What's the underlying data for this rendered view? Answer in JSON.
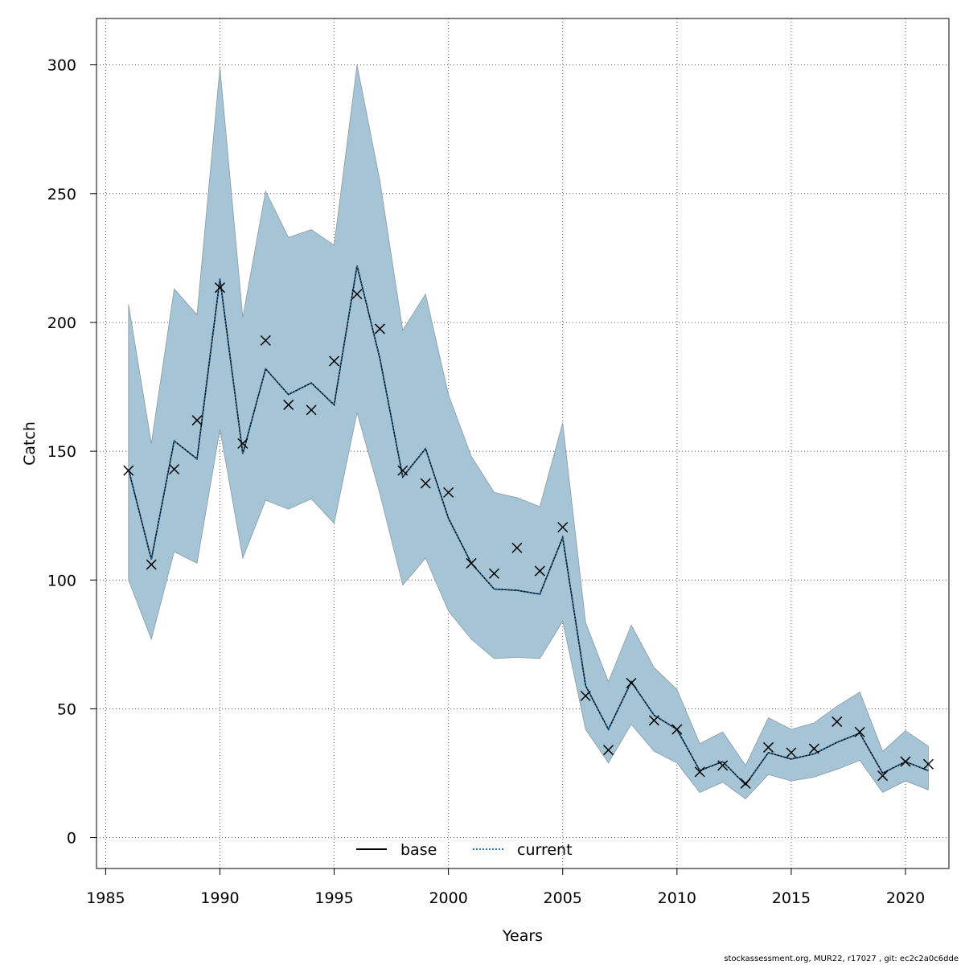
{
  "chart_data": {
    "type": "line",
    "title": "",
    "xlabel": "Years",
    "ylabel": "Catch",
    "xlim": [
      1984.6,
      2021.9
    ],
    "ylim": [
      -12,
      318
    ],
    "x_ticks": [
      1985,
      1990,
      1995,
      2000,
      2005,
      2010,
      2015,
      2020
    ],
    "y_ticks": [
      0,
      50,
      100,
      150,
      200,
      250,
      300
    ],
    "grid": true,
    "legend_position": "bottom-center",
    "colors": {
      "band": "#a5c4d5",
      "band_edge": "#8a9aa4",
      "base": "#000000",
      "current": "#1f6fa8",
      "observed": "#000000",
      "grid": "#555555"
    },
    "years": [
      1986,
      1987,
      1988,
      1989,
      1990,
      1991,
      1992,
      1993,
      1994,
      1995,
      1996,
      1997,
      1998,
      1999,
      2000,
      2001,
      2002,
      2003,
      2004,
      2005,
      2006,
      2007,
      2008,
      2009,
      2010,
      2011,
      2012,
      2013,
      2014,
      2015,
      2016,
      2017,
      2018,
      2019,
      2020,
      2021
    ],
    "observed": [
      142.5,
      106,
      143,
      162,
      213.5,
      153,
      193,
      168,
      166,
      185,
      211,
      197.5,
      142.5,
      137.5,
      134,
      106.5,
      102.5,
      112.5,
      103.5,
      120.5,
      55,
      34,
      60,
      45.5,
      42,
      25.5,
      28,
      21,
      35,
      33,
      34.5,
      45,
      41,
      24,
      29.5,
      28.5
    ],
    "series": [
      {
        "name": "base",
        "style": "solid",
        "values": [
          143,
          108,
          154,
          147,
          217,
          149,
          182,
          172,
          176.5,
          168,
          222,
          186,
          140,
          151,
          124,
          106.5,
          96.5,
          96,
          94.5,
          116.5,
          59,
          42,
          60.5,
          47.5,
          42,
          26,
          29.5,
          20.5,
          33,
          30.5,
          32.5,
          37,
          40.5,
          25,
          29.5,
          26
        ]
      },
      {
        "name": "current",
        "style": "dotted",
        "values": [
          143,
          108,
          154,
          147,
          217,
          149,
          182,
          172,
          176.5,
          168,
          222,
          186,
          140,
          151,
          124,
          106.5,
          96.5,
          96,
          94.5,
          116.5,
          59,
          42,
          60.5,
          47.5,
          42,
          26,
          29.5,
          20.5,
          33,
          30.5,
          32.5,
          37,
          40.5,
          25,
          29.5,
          26
        ]
      }
    ],
    "band": {
      "upper": [
        207,
        153,
        213,
        203,
        299,
        202,
        251,
        233,
        236,
        230,
        300,
        255,
        197,
        211,
        172,
        148,
        134,
        132,
        128.5,
        161,
        83.5,
        60.5,
        82.5,
        66,
        57.5,
        36.5,
        41,
        28,
        46.5,
        42,
        44.5,
        51,
        56.5,
        33.5,
        41.5,
        35.5
      ],
      "lower": [
        100,
        77,
        111,
        106.5,
        158.5,
        108.5,
        131,
        127.5,
        131.5,
        122,
        165,
        133.5,
        98,
        108.5,
        88,
        77,
        69.5,
        70,
        69.5,
        84,
        42,
        29,
        44,
        33.5,
        29,
        17.5,
        21.5,
        15,
        24.5,
        22,
        23.5,
        26.5,
        30,
        17.5,
        22,
        18.5
      ]
    }
  },
  "footer_note": "stockassessment.org, MUR22, r17027 , git: ec2c2a0c6dde"
}
